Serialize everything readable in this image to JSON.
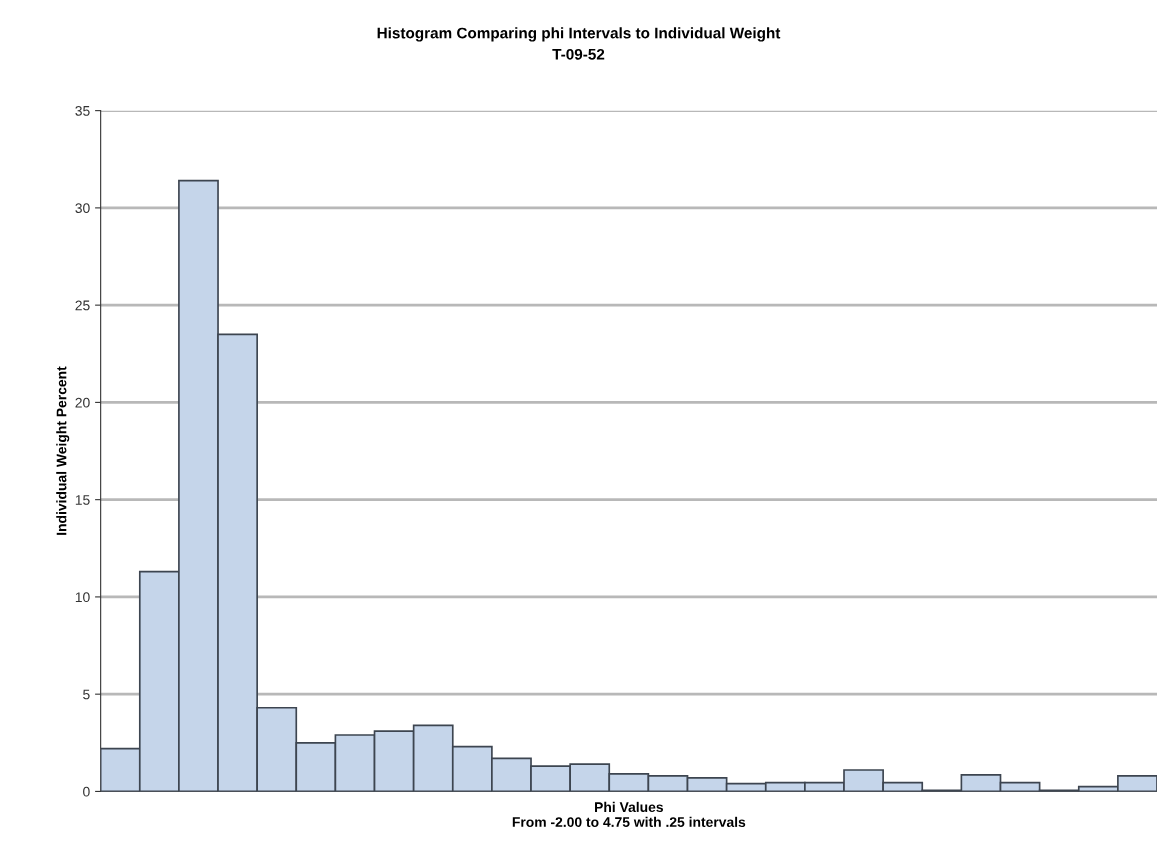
{
  "chart_data": {
    "type": "bar",
    "title": "Histogram Comparing phi Intervals to Individual Weight",
    "subtitle": "T-09-52",
    "xlabel": "Phi Values\nFrom -2.00 to 4.75 with .25 intervals",
    "ylabel": "Individual Weight Percent",
    "categories": [
      null,
      null,
      null,
      null,
      null,
      null,
      null,
      null,
      null,
      null,
      null,
      null,
      null,
      null,
      null,
      null,
      null,
      null,
      null,
      null,
      null,
      null,
      null,
      null,
      null,
      null,
      null
    ],
    "values": [
      2.2,
      11.3,
      31.4,
      23.5,
      4.3,
      2.5,
      2.9,
      3.1,
      3.4,
      2.3,
      1.7,
      1.3,
      1.4,
      0.9,
      0.8,
      0.7,
      0.4,
      0.45,
      0.45,
      1.1,
      0.45,
      0.05,
      0.85,
      0.45,
      0.05,
      0.25,
      0.8
    ],
    "color": "#c5d5ea",
    "ylim": [
      0,
      35
    ],
    "yticks": [
      0,
      5,
      10,
      15,
      20,
      25,
      30,
      35
    ],
    "grid": "y",
    "legend": false
  }
}
